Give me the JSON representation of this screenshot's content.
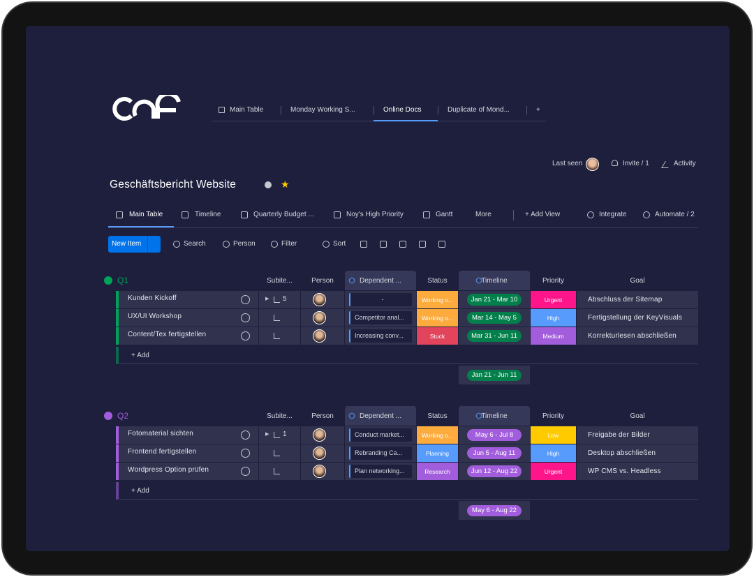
{
  "tabs": [
    "Main Table",
    "Monday Working S...",
    "Online Docs",
    "Duplicate of Mond...",
    "+"
  ],
  "header": {
    "last_seen": "Last seen",
    "invite": "Invite / 1",
    "activity": "Activity"
  },
  "board_title": "Geschäftsbericht Website",
  "views": [
    "Main Table",
    "Timeline",
    "Quarterly Budget ...",
    "Noy's High Priority",
    "Gantt",
    "More",
    "+ Add View"
  ],
  "view_actions": [
    "Integrate",
    "Automate / 2"
  ],
  "toolbar": {
    "new_item": "New Item",
    "tools": [
      "Search",
      "Person",
      "Filter",
      "Sort"
    ]
  },
  "columns": [
    "Subite...",
    "Person",
    "Dependent ...",
    "Status",
    "Timeline",
    "Priority",
    "Goal"
  ],
  "groups": [
    {
      "name": "Q1",
      "color": "#00a359",
      "timeline_color": "#037f4c",
      "rows": [
        {
          "name": "Kunden Kickoff",
          "subitems": "5",
          "dependent": "-",
          "status": "Working o...",
          "status_color": "#fdab3d",
          "timeline": "Jan 21 - Mar 10",
          "priority": "Urgent",
          "priority_color": "#ff158a",
          "goal": "Abschluss der Sitemap"
        },
        {
          "name": "UX/UI Workshop",
          "subitems": null,
          "dependent": "Competitor anal...",
          "status": "Working o...",
          "status_color": "#fdab3d",
          "timeline": "Mar 14 - May 5",
          "priority": "High",
          "priority_color": "#579bfc",
          "goal": "Fertigstellung der KeyVisuals"
        },
        {
          "name": "Content/Tex fertigstellen",
          "subitems": null,
          "dependent": "Increasing conv...",
          "status": "Stuck",
          "status_color": "#e2445c",
          "timeline": "Mar 31 - Jun 11",
          "priority": "Medium",
          "priority_color": "#a25ddc",
          "goal": "Korrekturlesen abschließen"
        }
      ],
      "add": "+ Add",
      "summary": "Jan 21 - Jun 11"
    },
    {
      "name": "Q2",
      "color": "#a25ddc",
      "timeline_color": "#a25ddc",
      "rows": [
        {
          "name": "Fotomaterial sichten",
          "subitems": "1",
          "dependent": "Conduct market...",
          "status": "Working o...",
          "status_color": "#fdab3d",
          "timeline": "May 6 - Jul 8",
          "priority": "Low",
          "priority_color": "#ffcb00",
          "goal": "Freigabe der Bilder"
        },
        {
          "name": "Frontend fertigstellen",
          "subitems": null,
          "dependent": "Rebranding Ca...",
          "status": "Planning",
          "status_color": "#579bfc",
          "timeline": "Jun 5 - Aug 11",
          "priority": "High",
          "priority_color": "#579bfc",
          "goal": "Desktop abschließen"
        },
        {
          "name": "Wordpress Option prüfen",
          "subitems": null,
          "dependent": "Plan networking...",
          "status": "Research",
          "status_color": "#a25ddc",
          "timeline": "Jun 12 - Aug 22",
          "priority": "Urgent",
          "priority_color": "#ff158a",
          "goal": "WP CMS vs. Headless"
        }
      ],
      "add": "+ Add",
      "summary": "May 6 - Aug 22"
    }
  ]
}
